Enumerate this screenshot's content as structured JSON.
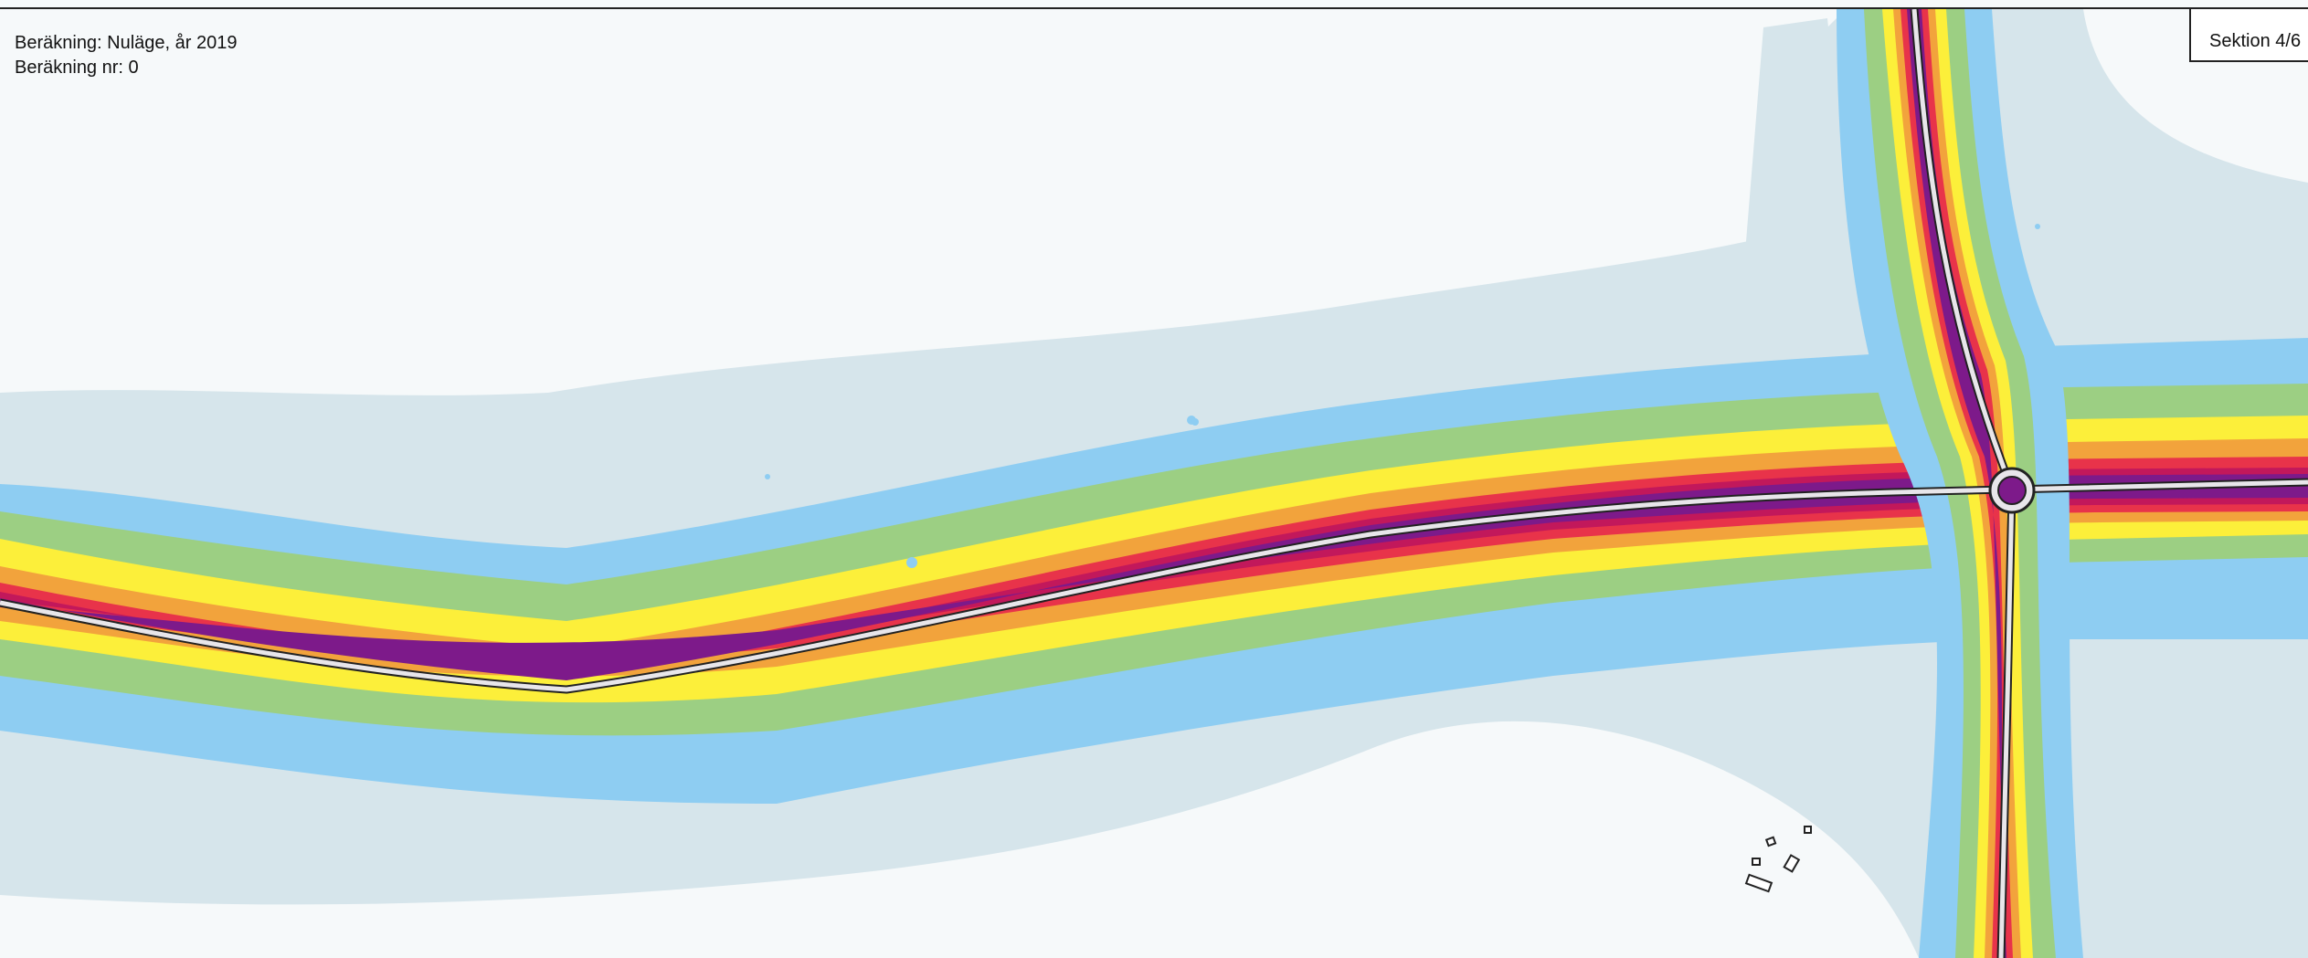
{
  "header": {
    "calculation": "Beräkning: Nuläge, år 2019",
    "calculation_number": "Beräkning nr: 0",
    "section": "Sektion 4/6"
  },
  "map": {
    "noise_bands": [
      {
        "color": "#d6e5eb"
      },
      {
        "color": "#8ecdf2"
      },
      {
        "color": "#9ccf83"
      },
      {
        "color": "#fcef3a"
      },
      {
        "color": "#f2a33c"
      },
      {
        "color": "#e8334a"
      },
      {
        "color": "#c2185b"
      },
      {
        "color": "#7d1a8a"
      }
    ],
    "road_color": "#e8e6ea",
    "roundabout_icon": "roundabout-icon",
    "building_icon": "building-icon"
  }
}
